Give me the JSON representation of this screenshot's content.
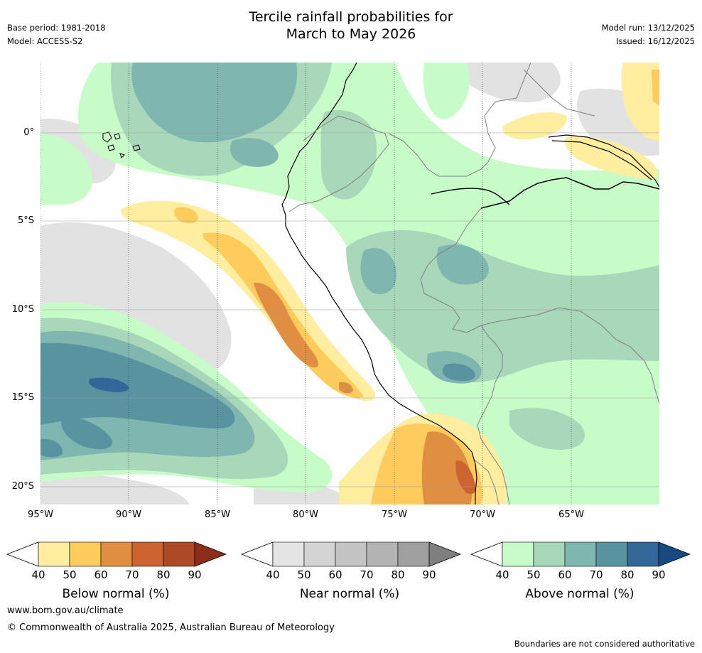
{
  "title_line1": "Tercile rainfall probabilities for",
  "title_line2": "March to May 2026",
  "base_period": "Base period: 1981-2018",
  "model": "Model: ACCESS-S2",
  "model_run": "Model run: 13/12/2025",
  "issued": "Issued: 16/12/2025",
  "lat_labels": [
    "0°",
    "5°S",
    "10°S",
    "15°S",
    "20°S"
  ],
  "lon_labels": [
    "95°W",
    "90°W",
    "85°W",
    "80°W",
    "75°W",
    "70°W",
    "65°W"
  ],
  "colorbars": [
    {
      "label": "Below normal (%)",
      "ticks": [
        "40",
        "50",
        "60",
        "70",
        "80",
        "90"
      ],
      "colors": [
        "#ffffff",
        "#ffeda0",
        "#fecc5c",
        "#e08f42",
        "#cc6330",
        "#ad4a25",
        "#8c2d1a"
      ]
    },
    {
      "label": "Near normal (%)",
      "ticks": [
        "40",
        "50",
        "60",
        "70",
        "80",
        "90"
      ],
      "colors": [
        "#ffffff",
        "#e5e5e5",
        "#d4d4d4",
        "#c4c4c4",
        "#b3b3b3",
        "#a0a0a0",
        "#7f7f7f"
      ]
    },
    {
      "label": "Above normal (%)",
      "ticks": [
        "40",
        "50",
        "60",
        "70",
        "80",
        "90"
      ],
      "colors": [
        "#ffffff",
        "#c7fcc9",
        "#a8d8b9",
        "#7fb7b0",
        "#5a93a0",
        "#336699",
        "#174a80"
      ]
    }
  ],
  "website": "www.bom.gov.au/climate",
  "copyright": "© Commonwealth of Australia 2025, Australian Bureau of Meteorology",
  "disclaimer": "Boundaries are not considered authoritative",
  "map_colors": {
    "near40": "#e2e2e2",
    "above40": "#c7fcc9",
    "above50": "#a8d8b9",
    "above60": "#7fb7b0",
    "above70": "#5a93a0",
    "above80": "#336699",
    "below40": "#ffeda0",
    "below50": "#fecc5c",
    "below60": "#e08f42",
    "below70": "#cc6330"
  }
}
